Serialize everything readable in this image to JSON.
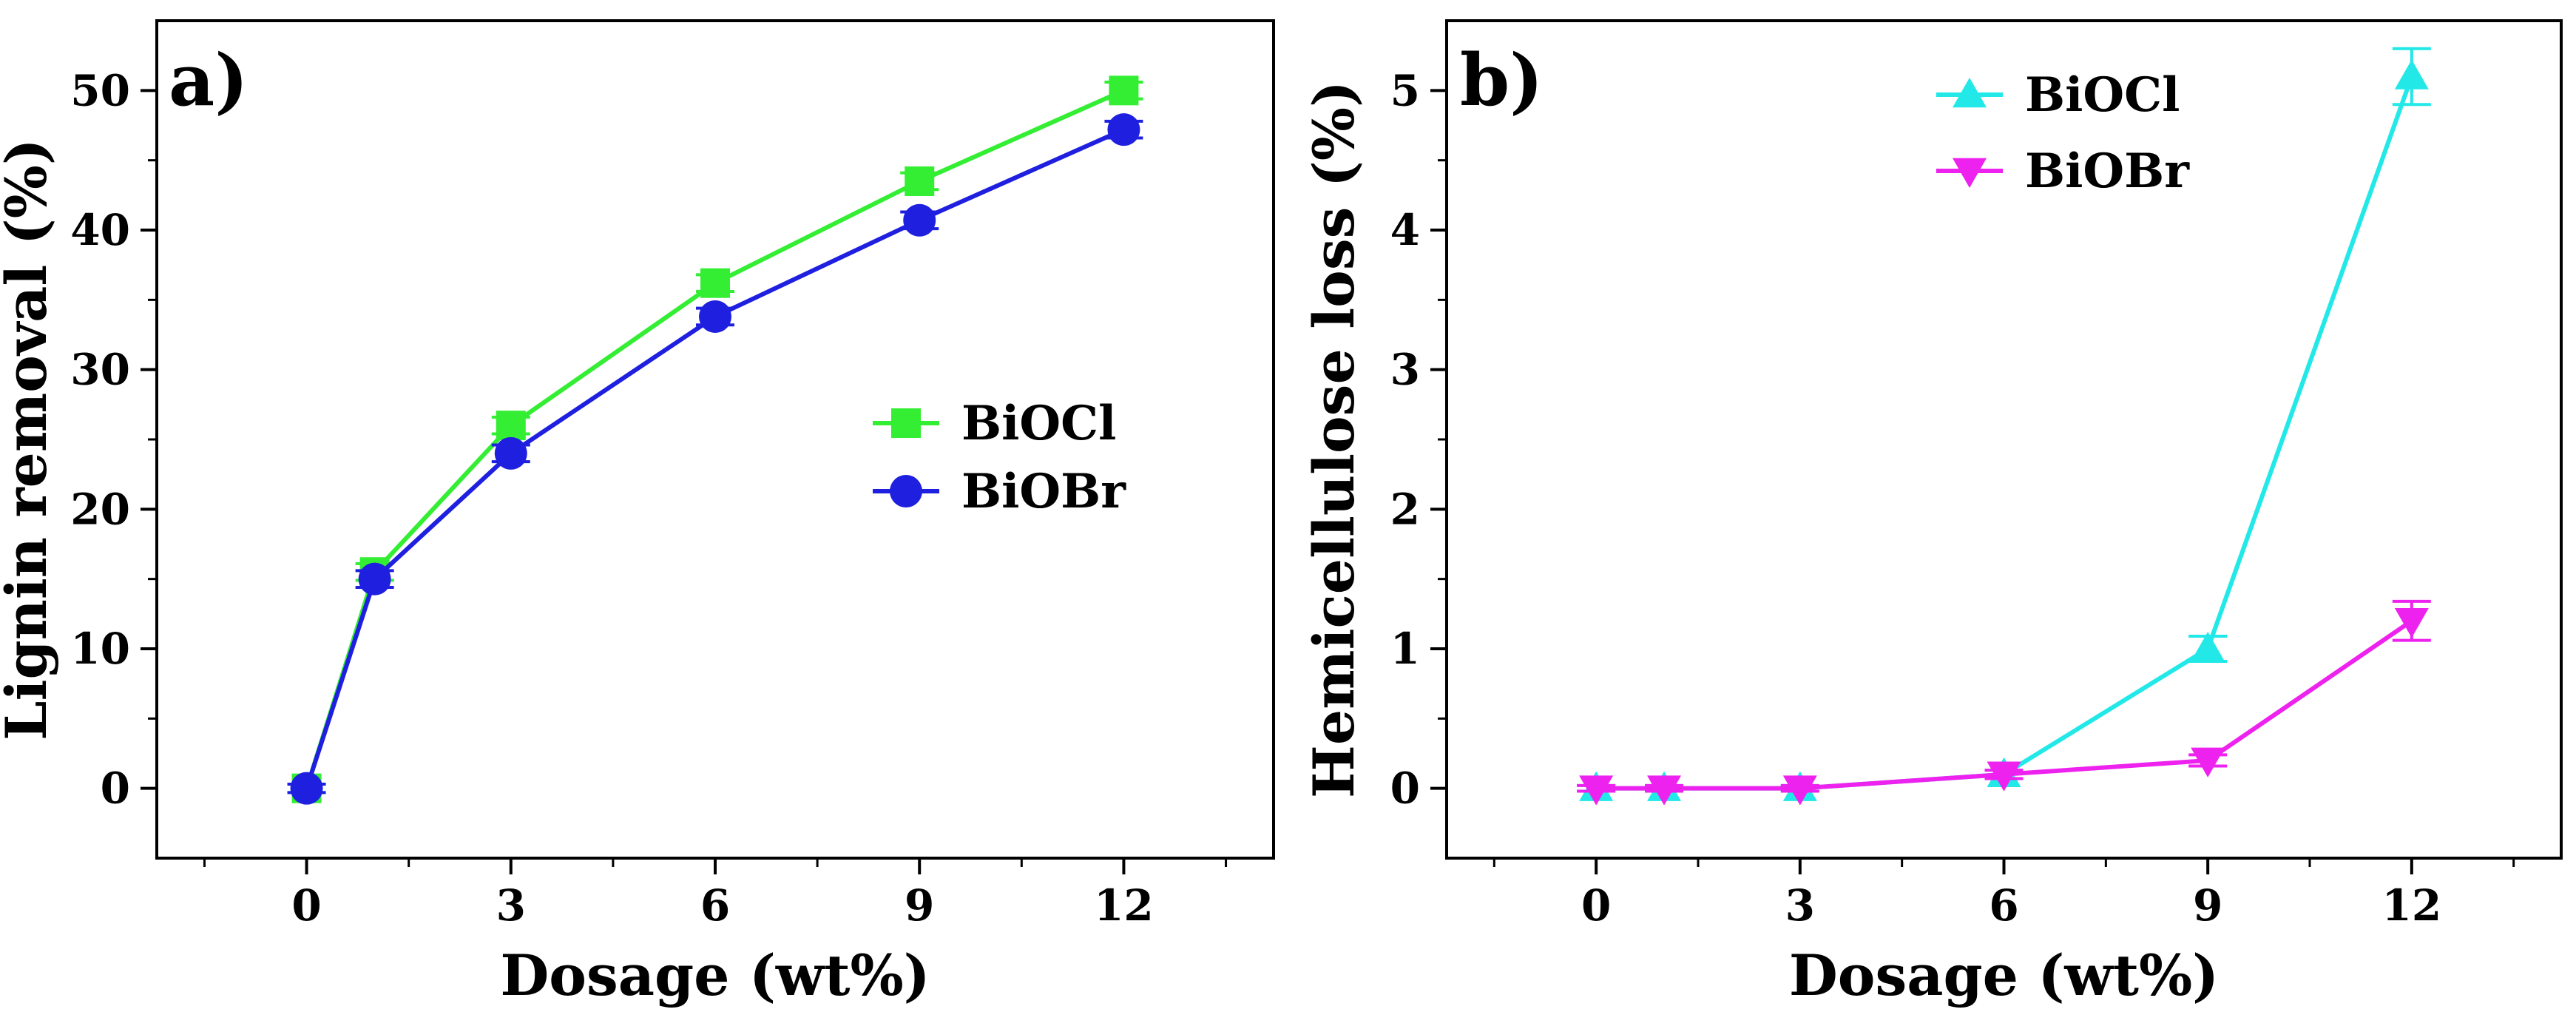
{
  "chart_data": [
    {
      "type": "line",
      "panel_label": "a)",
      "xlabel": "Dosage (wt%)",
      "ylabel": "Lignin removal (%)",
      "xlim": [
        -2.2,
        14.2
      ],
      "ylim": [
        -5,
        55
      ],
      "xticks": [
        0,
        3,
        6,
        9,
        12
      ],
      "xtick_labels": [
        "0",
        "3",
        "6",
        "9",
        "12"
      ],
      "yticks": [
        0,
        10,
        20,
        30,
        40,
        50
      ],
      "ytick_labels": [
        "0",
        "10",
        "20",
        "30",
        "40",
        "50"
      ],
      "legend_position": "center-right",
      "series": [
        {
          "name": "BiOCl",
          "color": "#33ee33",
          "marker": "square",
          "x": [
            0,
            1,
            3,
            6,
            9,
            12
          ],
          "y": [
            0,
            15.5,
            26,
            36.2,
            43.5,
            50
          ],
          "err": [
            0.3,
            0.6,
            0.6,
            0.6,
            0.6,
            0.6
          ]
        },
        {
          "name": "BiOBr",
          "color": "#1f1fe0",
          "marker": "circle",
          "x": [
            0,
            1,
            3,
            6,
            9,
            12
          ],
          "y": [
            0,
            15,
            24,
            33.8,
            40.7,
            47.2
          ],
          "err": [
            0.3,
            0.6,
            0.6,
            0.6,
            0.6,
            0.6
          ]
        }
      ]
    },
    {
      "type": "line",
      "panel_label": "b)",
      "xlabel": "Dosage (wt%)",
      "ylabel": "Hemicellulose loss (%)",
      "xlim": [
        -2.2,
        14.2
      ],
      "ylim": [
        -0.5,
        5.5
      ],
      "xticks": [
        0,
        3,
        6,
        9,
        12
      ],
      "xtick_labels": [
        "0",
        "3",
        "6",
        "9",
        "12"
      ],
      "yticks": [
        0,
        1,
        2,
        3,
        4,
        5
      ],
      "ytick_labels": [
        "0",
        "1",
        "2",
        "3",
        "4",
        "5"
      ],
      "legend_position": "top-center",
      "series": [
        {
          "name": "BiOCl",
          "color": "#22e8e8",
          "marker": "triangle-up",
          "x": [
            0,
            1,
            3,
            6,
            9,
            12
          ],
          "y": [
            0,
            0,
            0,
            0.1,
            1.0,
            5.1
          ],
          "err": [
            0.02,
            0.02,
            0.02,
            0.03,
            0.09,
            0.2
          ]
        },
        {
          "name": "BiOBr",
          "color": "#ee22ee",
          "marker": "triangle-down",
          "x": [
            0,
            1,
            3,
            6,
            9,
            12
          ],
          "y": [
            0,
            0,
            0,
            0.1,
            0.2,
            1.2
          ],
          "err": [
            0.02,
            0.02,
            0.02,
            0.03,
            0.04,
            0.14
          ]
        }
      ]
    }
  ]
}
